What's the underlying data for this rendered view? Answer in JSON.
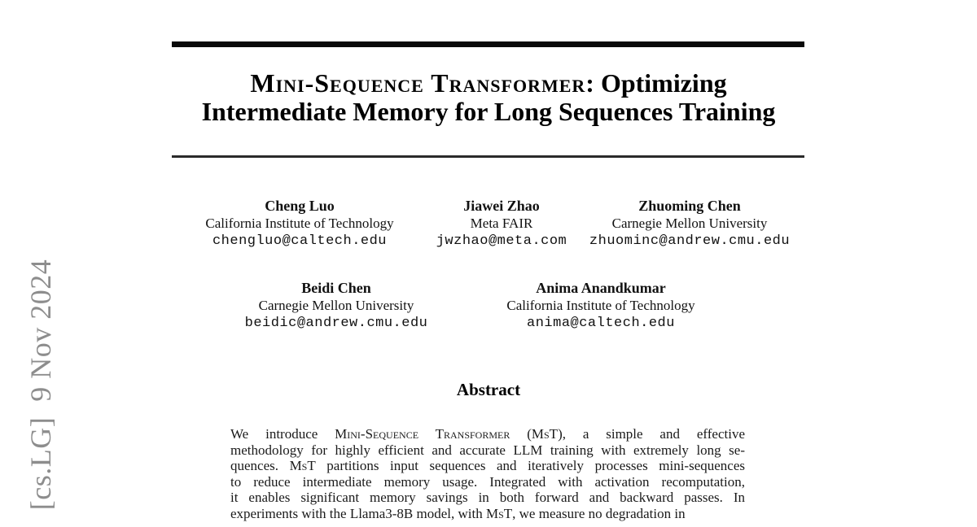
{
  "title": {
    "line1_sc": "Mini-Sequence Transformer",
    "line1_rest": ": Optimizing",
    "line2": "Intermediate Memory for Long Sequences Training"
  },
  "authors": [
    {
      "name": "Cheng Luo",
      "affiliation": "California Institute of Technology",
      "email": "chengluo@caltech.edu"
    },
    {
      "name": "Jiawei Zhao",
      "affiliation": "Meta FAIR",
      "email": "jwzhao@meta.com"
    },
    {
      "name": "Zhuoming Chen",
      "affiliation": "Carnegie Mellon University",
      "email": "zhuominc@andrew.cmu.edu"
    },
    {
      "name": "Beidi Chen",
      "affiliation": "Carnegie Mellon University",
      "email": "beidic@andrew.cmu.edu"
    },
    {
      "name": "Anima Anandkumar",
      "affiliation": "California Institute of Technology",
      "email": "anima@caltech.edu"
    }
  ],
  "abstract": {
    "heading": "Abstract",
    "lines": [
      [
        {
          "t": "We introduce "
        },
        {
          "t": "Mini-Sequence Transformer",
          "sc": true
        },
        {
          "t": " ("
        },
        {
          "t": "MsT",
          "sc": true
        },
        {
          "t": "), a simple and effective"
        }
      ],
      [
        {
          "t": "methodology for highly efficient and accurate LLM training with extremely long se-"
        }
      ],
      [
        {
          "t": "quences. "
        },
        {
          "t": "MsT",
          "sc": true
        },
        {
          "t": " partitions input sequences and iteratively processes mini-sequences"
        }
      ],
      [
        {
          "t": "to reduce intermediate memory usage. Integrated with activation recomputation,"
        }
      ],
      [
        {
          "t": "it enables significant memory savings in both forward and backward passes. In"
        }
      ],
      [
        {
          "t": "experiments with the Llama3-8B model, with "
        },
        {
          "t": "MsT",
          "sc": true
        },
        {
          "t": ", we measure no degradation in"
        }
      ]
    ]
  },
  "watermark": {
    "text": "[cs.LG]  9 Nov 2024",
    "color": "#8d8d8d"
  }
}
